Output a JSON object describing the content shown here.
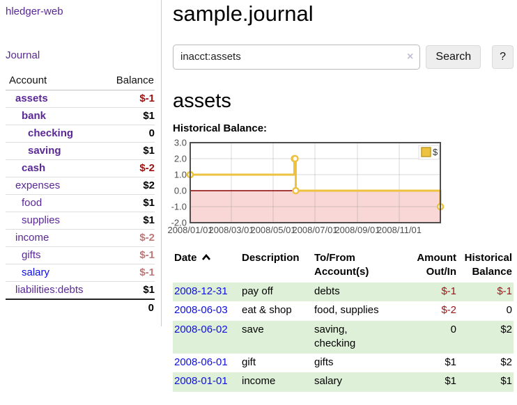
{
  "sidebar": {
    "brand": "hledger-web",
    "journal_link": "Journal",
    "accounts": {
      "col_account": "Account",
      "col_balance": "Balance",
      "rows": [
        {
          "name": "assets",
          "indent": 1,
          "balance": "$-1",
          "matched": true,
          "balance_style": "neg-strong"
        },
        {
          "name": "bank",
          "indent": 2,
          "balance": "$1",
          "matched": true,
          "balance_style": "pos"
        },
        {
          "name": "checking",
          "indent": 3,
          "balance": "0",
          "matched": true,
          "balance_style": "pos"
        },
        {
          "name": "saving",
          "indent": 3,
          "balance": "$1",
          "matched": true,
          "balance_style": "pos"
        },
        {
          "name": "cash",
          "indent": 2,
          "balance": "$-2",
          "matched": true,
          "balance_style": "neg-strong"
        },
        {
          "name": "expenses",
          "indent": 1,
          "balance": "$2",
          "matched": false,
          "balance_style": "pos"
        },
        {
          "name": "food",
          "indent": 2,
          "balance": "$1",
          "matched": false,
          "balance_style": "pos"
        },
        {
          "name": "supplies",
          "indent": 2,
          "balance": "$1",
          "matched": false,
          "balance_style": "pos"
        },
        {
          "name": "income",
          "indent": 1,
          "balance": "$-2",
          "matched": false,
          "balance_style": "neg-muted"
        },
        {
          "name": "gifts",
          "indent": 2,
          "balance": "$-1",
          "matched": false,
          "balance_style": "neg-muted"
        },
        {
          "name": "salary",
          "indent": 2,
          "balance": "$-1",
          "matched": false,
          "balance_style": "neg-muted",
          "link_style": "blue"
        },
        {
          "name": "liabilities:debts",
          "indent": 1,
          "balance": "$1",
          "matched": false,
          "balance_style": "pos"
        }
      ],
      "total": "0"
    }
  },
  "main": {
    "title": "sample.journal",
    "search": {
      "value": "inacct:assets",
      "clear_icon": "×",
      "search_label": "Search",
      "help_label": "?"
    },
    "heading": "assets",
    "chart_label": "Historical Balance:"
  },
  "chart_data": {
    "type": "line",
    "title": "Historical Balance",
    "legend": [
      {
        "label": "$",
        "color": "#edc240"
      }
    ],
    "legend_position": "top-right",
    "grid": true,
    "ylim": [
      -2.0,
      3.0
    ],
    "yticks": [
      "3.0",
      "2.0",
      "1.0",
      "0.0",
      "-1.0",
      "-2.0"
    ],
    "xlim_days": [
      0,
      365
    ],
    "xticks": [
      {
        "label": "2008/01/01",
        "day": 0
      },
      {
        "label": "2008/03/01",
        "day": 60
      },
      {
        "label": "2008/05/01",
        "day": 121
      },
      {
        "label": "2008/07/01",
        "day": 182
      },
      {
        "label": "2008/09/01",
        "day": 244
      },
      {
        "label": "2008/11/01",
        "day": 305
      }
    ],
    "series": [
      {
        "name": "$",
        "color": "#edc240",
        "style": "step",
        "points": [
          {
            "date": "2008-01-01",
            "day": 0,
            "value": 1
          },
          {
            "date": "2008-06-01",
            "day": 152,
            "value": 2
          },
          {
            "date": "2008-06-02",
            "day": 153,
            "value": 2
          },
          {
            "date": "2008-06-03",
            "day": 154,
            "value": 0
          },
          {
            "date": "2008-12-31",
            "day": 365,
            "value": -1
          }
        ]
      }
    ],
    "negative_region_color": "#f9d7d7",
    "zero_line_color": "#8b0000"
  },
  "register": {
    "headers": {
      "date": "Date",
      "description": "Description",
      "account": "To/From Account(s)",
      "amount": "Amount Out/In",
      "balance": "Historical Balance"
    },
    "rows": [
      {
        "date": "2008-12-31",
        "description": "pay off",
        "accounts": "debts",
        "amount": "$-1",
        "amount_neg": true,
        "balance": "$-1",
        "balance_neg": true,
        "shaded": true
      },
      {
        "date": "2008-06-03",
        "description": "eat & shop",
        "accounts": "food, supplies",
        "amount": "$-2",
        "amount_neg": true,
        "balance": "0",
        "balance_neg": false,
        "shaded": false
      },
      {
        "date": "2008-06-02",
        "description": "save",
        "accounts": "saving, checking",
        "amount": "0",
        "amount_neg": false,
        "balance": "$2",
        "balance_neg": false,
        "shaded": true
      },
      {
        "date": "2008-06-01",
        "description": "gift",
        "accounts": "gifts",
        "amount": "$1",
        "amount_neg": false,
        "balance": "$2",
        "balance_neg": false,
        "shaded": false
      },
      {
        "date": "2008-01-01",
        "description": "income",
        "accounts": "salary",
        "amount": "$1",
        "amount_neg": false,
        "balance": "$1",
        "balance_neg": false,
        "shaded": true
      }
    ]
  }
}
